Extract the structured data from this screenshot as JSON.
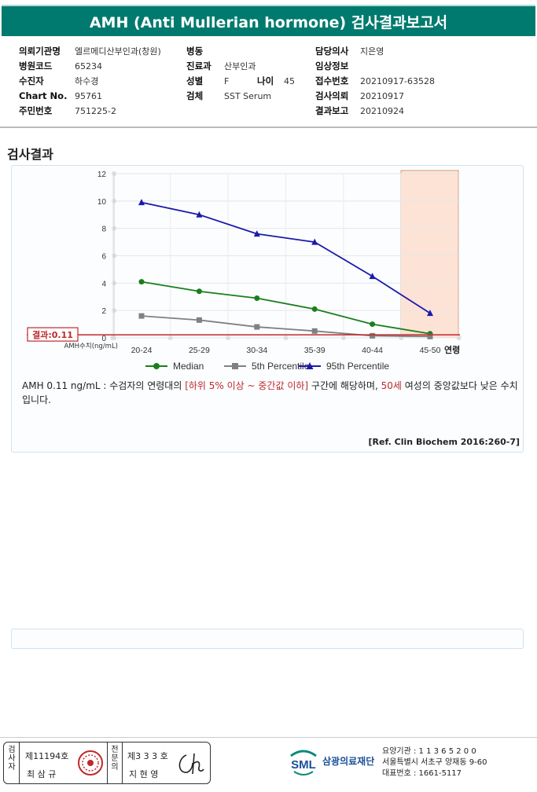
{
  "title": "AMH (Anti Mullerian hormone) 검사결과보고서",
  "info": {
    "col1": [
      {
        "label": "의뢰기관명",
        "value": "엘르메디산부인과(창원)"
      },
      {
        "label": "병원코드",
        "value": "65234"
      },
      {
        "label": "수진자",
        "value": "하수경"
      },
      {
        "label": "Chart No.",
        "value": "95761"
      },
      {
        "label": "주민번호",
        "value": "751225-2"
      }
    ],
    "col2": [
      {
        "label": "병동",
        "value": ""
      },
      {
        "label": "진료과",
        "value": "산부인과"
      },
      {
        "label": "성별",
        "value": "F"
      },
      {
        "label": "검체",
        "value": "SST Serum"
      }
    ],
    "age": {
      "label": "나이",
      "value": "45"
    },
    "col3": [
      {
        "label": "담당의사",
        "value": "지은영"
      },
      {
        "label": "임상정보",
        "value": ""
      },
      {
        "label": "접수번호",
        "value": "20210917-63528"
      },
      {
        "label": "검사의뢰",
        "value": "20210917"
      },
      {
        "label": "결과보고",
        "value": "20210924"
      }
    ]
  },
  "section_title": "검사결과",
  "chart_data": {
    "type": "line",
    "categories": [
      "20-24",
      "25-29",
      "30-34",
      "35-39",
      "40-44",
      "45-50"
    ],
    "x_axis_end_label": "연령",
    "y_axis_label": "AMH수치(ng/mL)",
    "ylim": [
      0,
      12
    ],
    "yticks": [
      "0",
      "2",
      "4",
      "6",
      "8",
      "10",
      "12"
    ],
    "series": [
      {
        "name": "Median",
        "color": "#1a7f1a",
        "marker": "circle",
        "values": [
          4.1,
          3.4,
          2.9,
          2.1,
          1.0,
          0.3
        ]
      },
      {
        "name": "5th Percentile",
        "color": "#808080",
        "marker": "square",
        "values": [
          1.6,
          1.3,
          0.8,
          0.5,
          0.15,
          0.1
        ]
      },
      {
        "name": "95th Percentile",
        "color": "#1a1aaa",
        "marker": "triangle",
        "values": [
          9.9,
          9.0,
          7.6,
          7.0,
          4.5,
          1.8
        ]
      }
    ],
    "result": {
      "label": "결과:0.11",
      "value": 0.11,
      "color": "#c0282a"
    },
    "highlight_category": "45-50",
    "highlight_color": "#fde3d6",
    "legend_position": "bottom",
    "grid": true
  },
  "comment": {
    "part1": "AMH  0.11 ng/mL : 수검자의 연령대의 ",
    "red1": "[하위 5% 이상 ~ 중간값 이하]",
    "part2": " 구간에 해당하며, ",
    "red2": "50세",
    "part3": " 여성의 중앙값보다 낮은 수치입니다."
  },
  "reference": "[Ref. Clin Biochem 2016:260-7]",
  "footer": {
    "examiner_label": "검사자",
    "examiner_no": "제11194호",
    "examiner_name": "최 삼 규",
    "specialist_label": "전문의",
    "specialist_no": "제3 3 3 호",
    "specialist_name": "지 현 영",
    "org_logo": "SML",
    "org_name": "삼광의료재단",
    "addr_line1": "요양기관 : 1 1 3 6 5 2 0 0",
    "addr_line2": "서울특별시 서초구 양재동 9-60",
    "addr_line3": "대표번호 : 1661-5117"
  }
}
